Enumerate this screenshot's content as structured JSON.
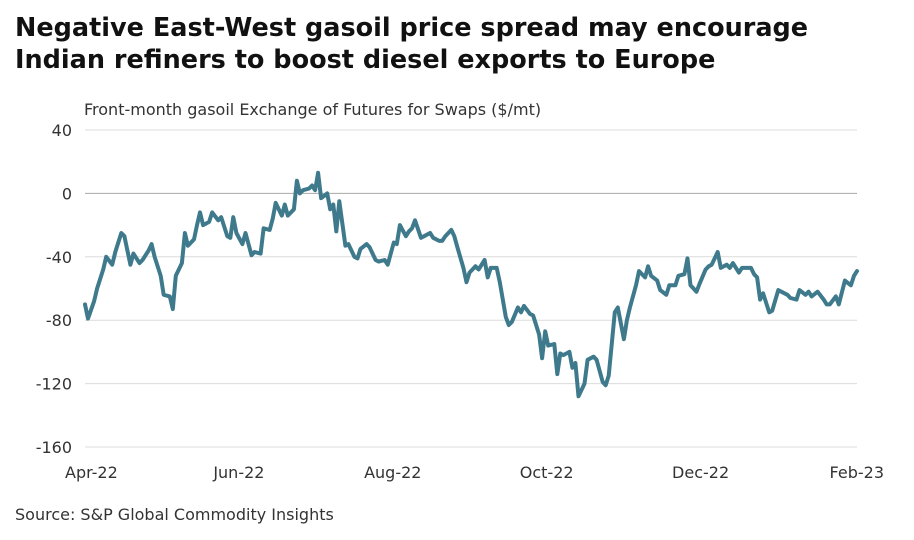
{
  "title_line1": "Negative East-West gasoil price spread may encourage",
  "title_line2": "Indian refiners to boost diesel exports to Europe",
  "source": "Source: S&P Global Commodity Insights",
  "colors": {
    "line": "#3e7a8c",
    "grid": "#dcdcdc",
    "zero": "#a8a8a8"
  },
  "chart_data": {
    "type": "line",
    "title": "",
    "subtitle": "Front-month gasoil Exchange of Futures for Swaps ($/mt)",
    "xlabel": "",
    "ylabel": "",
    "ylim": [
      -160,
      40
    ],
    "yticks": [
      40,
      0,
      -40,
      -80,
      -120,
      -160
    ],
    "yticks_labels": [
      "40",
      "0",
      "-40",
      "-80",
      "-120",
      "-160"
    ],
    "xlim": [
      "2022-04-01",
      "2023-02-01"
    ],
    "xticks": [
      {
        "date": "2022-04-01",
        "label": "Apr-22"
      },
      {
        "date": "2022-06-01",
        "label": "Jun-22"
      },
      {
        "date": "2022-08-01",
        "label": "Aug-22"
      },
      {
        "date": "2022-10-01",
        "label": "Oct-22"
      },
      {
        "date": "2022-12-01",
        "label": "Dec-22"
      },
      {
        "date": "2023-02-01",
        "label": "Feb-23"
      }
    ],
    "grid": true,
    "legend": "none",
    "series": [
      {
        "name": "",
        "points": [
          [
            "2022-04-01",
            -70
          ],
          [
            "2022-04-02",
            -79
          ],
          [
            "2022-04-04",
            -68
          ],
          [
            "2022-04-05",
            -60
          ],
          [
            "2022-04-07",
            -48
          ],
          [
            "2022-04-08",
            -40
          ],
          [
            "2022-04-10",
            -45
          ],
          [
            "2022-04-11",
            -37
          ],
          [
            "2022-04-13",
            -25
          ],
          [
            "2022-04-14",
            -27
          ],
          [
            "2022-04-16",
            -45
          ],
          [
            "2022-04-17",
            -38
          ],
          [
            "2022-04-19",
            -44
          ],
          [
            "2022-04-20",
            -42
          ],
          [
            "2022-04-22",
            -36
          ],
          [
            "2022-04-23",
            -32
          ],
          [
            "2022-04-24",
            -40
          ],
          [
            "2022-04-26",
            -52
          ],
          [
            "2022-04-27",
            -64
          ],
          [
            "2022-04-29",
            -65
          ],
          [
            "2022-04-30",
            -73
          ],
          [
            "2022-05-01",
            -52
          ],
          [
            "2022-05-03",
            -44
          ],
          [
            "2022-05-04",
            -25
          ],
          [
            "2022-05-05",
            -33
          ],
          [
            "2022-05-07",
            -29
          ],
          [
            "2022-05-08",
            -20
          ],
          [
            "2022-05-09",
            -12
          ],
          [
            "2022-05-10",
            -20
          ],
          [
            "2022-05-12",
            -18
          ],
          [
            "2022-05-13",
            -12
          ],
          [
            "2022-05-15",
            -17
          ],
          [
            "2022-05-16",
            -15
          ],
          [
            "2022-05-18",
            -27
          ],
          [
            "2022-05-19",
            -28
          ],
          [
            "2022-05-20",
            -15
          ],
          [
            "2022-05-21",
            -25
          ],
          [
            "2022-05-23",
            -32
          ],
          [
            "2022-05-24",
            -25
          ],
          [
            "2022-05-26",
            -39
          ],
          [
            "2022-05-27",
            -37
          ],
          [
            "2022-05-29",
            -38
          ],
          [
            "2022-05-30",
            -22
          ],
          [
            "2022-06-01",
            -23
          ],
          [
            "2022-06-02",
            -16
          ],
          [
            "2022-06-03",
            -6
          ],
          [
            "2022-06-05",
            -14
          ],
          [
            "2022-06-06",
            -7
          ],
          [
            "2022-06-07",
            -14
          ],
          [
            "2022-06-09",
            -10
          ],
          [
            "2022-06-10",
            8
          ],
          [
            "2022-06-11",
            0
          ],
          [
            "2022-06-12",
            2
          ],
          [
            "2022-06-14",
            3
          ],
          [
            "2022-06-15",
            5
          ],
          [
            "2022-06-16",
            2
          ],
          [
            "2022-06-17",
            13
          ],
          [
            "2022-06-18",
            -3
          ],
          [
            "2022-06-20",
            0
          ],
          [
            "2022-06-21",
            -10
          ],
          [
            "2022-06-22",
            -7
          ],
          [
            "2022-06-23",
            -24
          ],
          [
            "2022-06-24",
            -5
          ],
          [
            "2022-06-26",
            -33
          ],
          [
            "2022-06-27",
            -32
          ],
          [
            "2022-06-29",
            -40
          ],
          [
            "2022-06-30",
            -41
          ],
          [
            "2022-07-01",
            -35
          ],
          [
            "2022-07-03",
            -32
          ],
          [
            "2022-07-04",
            -34
          ],
          [
            "2022-07-06",
            -42
          ],
          [
            "2022-07-07",
            -43
          ],
          [
            "2022-07-09",
            -42
          ],
          [
            "2022-07-10",
            -45
          ],
          [
            "2022-07-12",
            -31
          ],
          [
            "2022-07-13",
            -32
          ],
          [
            "2022-07-14",
            -20
          ],
          [
            "2022-07-16",
            -27
          ],
          [
            "2022-07-17",
            -24
          ],
          [
            "2022-07-18",
            -22
          ],
          [
            "2022-07-19",
            -17
          ],
          [
            "2022-07-21",
            -28
          ],
          [
            "2022-07-22",
            -27
          ],
          [
            "2022-07-24",
            -25
          ],
          [
            "2022-07-25",
            -28
          ],
          [
            "2022-07-27",
            -30
          ],
          [
            "2022-07-28",
            -30
          ],
          [
            "2022-07-29",
            -27
          ],
          [
            "2022-07-31",
            -23
          ],
          [
            "2022-08-01",
            -27
          ],
          [
            "2022-08-02",
            -34
          ],
          [
            "2022-08-04",
            -47
          ],
          [
            "2022-08-05",
            -56
          ],
          [
            "2022-08-06",
            -50
          ],
          [
            "2022-08-08",
            -46
          ],
          [
            "2022-08-09",
            -48
          ],
          [
            "2022-08-11",
            -42
          ],
          [
            "2022-08-12",
            -53
          ],
          [
            "2022-08-13",
            -47
          ],
          [
            "2022-08-15",
            -47
          ],
          [
            "2022-08-16",
            -56
          ],
          [
            "2022-08-18",
            -78
          ],
          [
            "2022-08-19",
            -83
          ],
          [
            "2022-08-20",
            -81
          ],
          [
            "2022-08-22",
            -72
          ],
          [
            "2022-08-23",
            -75
          ],
          [
            "2022-08-24",
            -71
          ],
          [
            "2022-08-26",
            -76
          ],
          [
            "2022-08-27",
            -77
          ],
          [
            "2022-08-29",
            -89
          ],
          [
            "2022-08-30",
            -104
          ],
          [
            "2022-08-31",
            -87
          ],
          [
            "2022-09-01",
            -96
          ],
          [
            "2022-09-03",
            -95
          ],
          [
            "2022-09-04",
            -114
          ],
          [
            "2022-09-05",
            -101
          ],
          [
            "2022-09-06",
            -102
          ],
          [
            "2022-09-08",
            -100
          ],
          [
            "2022-09-09",
            -110
          ],
          [
            "2022-09-10",
            -107
          ],
          [
            "2022-09-11",
            -128
          ],
          [
            "2022-09-13",
            -120
          ],
          [
            "2022-09-14",
            -105
          ],
          [
            "2022-09-16",
            -103
          ],
          [
            "2022-09-17",
            -105
          ],
          [
            "2022-09-19",
            -119
          ],
          [
            "2022-09-20",
            -121
          ],
          [
            "2022-09-21",
            -115
          ],
          [
            "2022-09-23",
            -75
          ],
          [
            "2022-09-24",
            -72
          ],
          [
            "2022-09-26",
            -92
          ],
          [
            "2022-09-27",
            -80
          ],
          [
            "2022-09-28",
            -72
          ],
          [
            "2022-09-30",
            -58
          ],
          [
            "2022-10-01",
            -49
          ],
          [
            "2022-10-03",
            -53
          ],
          [
            "2022-10-04",
            -46
          ],
          [
            "2022-10-05",
            -52
          ],
          [
            "2022-10-07",
            -55
          ],
          [
            "2022-10-08",
            -61
          ],
          [
            "2022-10-10",
            -64
          ],
          [
            "2022-10-11",
            -58
          ],
          [
            "2022-10-13",
            -58
          ],
          [
            "2022-10-14",
            -52
          ],
          [
            "2022-10-16",
            -51
          ],
          [
            "2022-10-17",
            -41
          ],
          [
            "2022-10-18",
            -58
          ],
          [
            "2022-10-20",
            -62
          ],
          [
            "2022-10-21",
            -57
          ],
          [
            "2022-10-23",
            -48
          ],
          [
            "2022-10-24",
            -46
          ],
          [
            "2022-10-25",
            -45
          ],
          [
            "2022-10-27",
            -37
          ],
          [
            "2022-10-28",
            -47
          ],
          [
            "2022-10-30",
            -45
          ],
          [
            "2022-10-31",
            -47
          ],
          [
            "2022-11-01",
            -44
          ],
          [
            "2022-11-03",
            -50
          ],
          [
            "2022-11-04",
            -47
          ],
          [
            "2022-11-05",
            -47
          ],
          [
            "2022-11-07",
            -47
          ],
          [
            "2022-11-08",
            -51
          ],
          [
            "2022-11-09",
            -53
          ],
          [
            "2022-11-10",
            -67
          ],
          [
            "2022-11-11",
            -63
          ],
          [
            "2022-11-13",
            -75
          ],
          [
            "2022-11-14",
            -74
          ],
          [
            "2022-11-16",
            -61
          ],
          [
            "2022-11-17",
            -62
          ],
          [
            "2022-11-19",
            -64
          ],
          [
            "2022-11-20",
            -66
          ],
          [
            "2022-11-22",
            -67
          ],
          [
            "2022-11-23",
            -61
          ],
          [
            "2022-11-25",
            -64
          ],
          [
            "2022-11-26",
            -62
          ],
          [
            "2022-11-27",
            -65
          ],
          [
            "2022-11-29",
            -62
          ],
          [
            "2022-12-01",
            -67
          ],
          [
            "2022-12-02",
            -70
          ],
          [
            "2022-12-03",
            -70
          ],
          [
            "2022-12-05",
            -65
          ],
          [
            "2022-12-06",
            -70
          ],
          [
            "2022-12-08",
            -55
          ],
          [
            "2022-12-10",
            -58
          ],
          [
            "2022-12-11",
            -52
          ],
          [
            "2022-12-12",
            -49
          ]
        ]
      }
    ]
  }
}
